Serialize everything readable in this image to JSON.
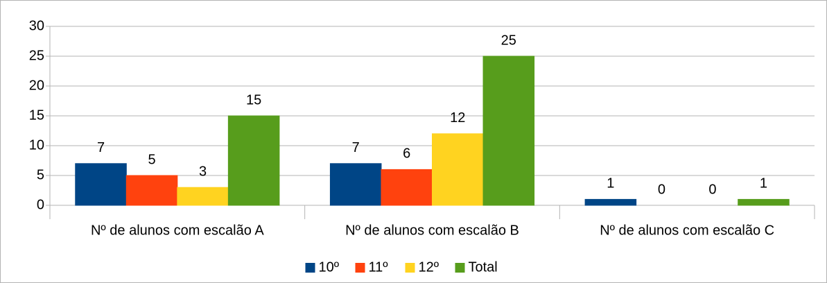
{
  "chart_data": {
    "type": "bar",
    "categories": [
      "Nº de alunos com escalão A",
      "Nº de alunos com escalão B",
      "Nº de alunos com escalão C"
    ],
    "series": [
      {
        "name": "10º",
        "color": "#004586",
        "values": [
          7,
          7,
          1
        ]
      },
      {
        "name": "11º",
        "color": "#ff420e",
        "values": [
          5,
          6,
          0
        ]
      },
      {
        "name": "12º",
        "color": "#ffd320",
        "values": [
          3,
          12,
          0
        ]
      },
      {
        "name": "Total",
        "color": "#579d1c",
        "values": [
          15,
          25,
          1
        ]
      }
    ],
    "ylim": [
      0,
      30
    ],
    "yticks": [
      0,
      5,
      10,
      15,
      20,
      25,
      30
    ],
    "grid": true,
    "legend": "bottom"
  }
}
